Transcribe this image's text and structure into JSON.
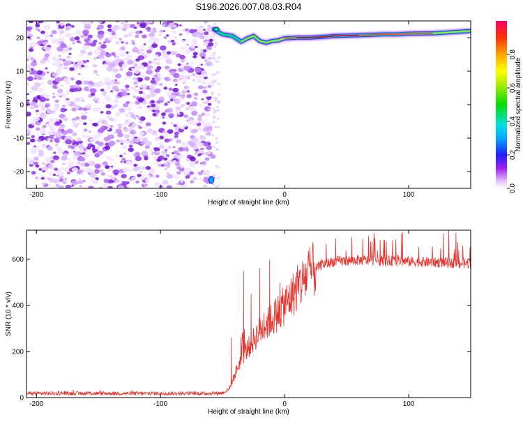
{
  "title": "S196.2026.007.08.03.R04",
  "colors": {
    "snr_line": "#e8312a",
    "speckle": "#8a2be2",
    "axis": "#000000"
  },
  "chart_data": [
    {
      "type": "heatmap",
      "name": "spectrogram",
      "xlabel": "Height of straight line (km)",
      "ylabel": "Frequency (Hz)",
      "xlim": [
        -208,
        150
      ],
      "ylim": [
        -25,
        25
      ],
      "xticks": [
        -200,
        -100,
        0,
        100
      ],
      "xtick_labels": [
        "-200",
        "-100",
        "0",
        "100"
      ],
      "yticks": [
        -20,
        -10,
        0,
        10,
        20
      ],
      "ytick_labels": [
        "-20",
        "-10",
        "0",
        "10",
        "20"
      ],
      "noise_region_x": [
        -208,
        -57
      ],
      "carrier_trace": {
        "x": [
          -57,
          -50,
          -42,
          -35,
          -30,
          -25,
          -20,
          -15,
          -10,
          -5,
          0,
          10,
          20,
          30,
          40,
          60,
          80,
          90,
          100,
          120,
          150
        ],
        "y": [
          22.5,
          21.0,
          20.5,
          18.8,
          19.8,
          20.5,
          19.0,
          18.5,
          19.0,
          19.2,
          19.8,
          20.0,
          20.0,
          20.2,
          20.5,
          20.7,
          21.0,
          21.0,
          21.2,
          21.3,
          22.0
        ],
        "amplitude": [
          0.3,
          0.3,
          0.35,
          0.6,
          0.55,
          0.5,
          0.55,
          0.55,
          0.6,
          0.75,
          0.9,
          0.95,
          0.95,
          1.0,
          1.0,
          0.95,
          0.9,
          0.85,
          0.9,
          0.85,
          0.2
        ]
      },
      "colorbar": {
        "label": "Normalized spectral amplitude",
        "range": [
          0.0,
          1.0
        ],
        "ticks": [
          0.0,
          0.2,
          0.4,
          0.6,
          0.8
        ],
        "tick_labels": [
          "0.0",
          "0.2",
          "0.4",
          "0.6",
          "0.8"
        ]
      }
    },
    {
      "type": "line",
      "name": "snr",
      "xlabel": "Height of straight line (km)",
      "ylabel": "SNR (10 * v/v)",
      "xlim": [
        -208,
        150
      ],
      "ylim": [
        0,
        725
      ],
      "xticks": [
        -200,
        -100,
        0,
        100
      ],
      "xtick_labels": [
        "-200",
        "-100",
        "0",
        "100"
      ],
      "yticks": [
        0,
        200,
        400,
        600
      ],
      "ytick_labels": [
        "0",
        "200",
        "400",
        "600"
      ],
      "series": [
        {
          "name": "SNR",
          "x_range": [
            -208,
            150
          ],
          "anchor_x": [
            -208,
            -60,
            -50,
            -45,
            -40,
            -35,
            -30,
            -20,
            -10,
            0,
            10,
            20,
            30,
            40,
            60,
            100,
            150
          ],
          "anchor_y": [
            18,
            18,
            20,
            35,
            100,
            170,
            210,
            290,
            340,
            400,
            470,
            540,
            575,
            590,
            595,
            590,
            580
          ],
          "peaks": [
            {
              "x": -43,
              "y": 260
            },
            {
              "x": -33,
              "y": 548
            },
            {
              "x": -27,
              "y": 450
            },
            {
              "x": -20,
              "y": 560
            },
            {
              "x": -12,
              "y": 598
            },
            {
              "x": 95,
              "y": 720
            }
          ]
        }
      ]
    }
  ]
}
